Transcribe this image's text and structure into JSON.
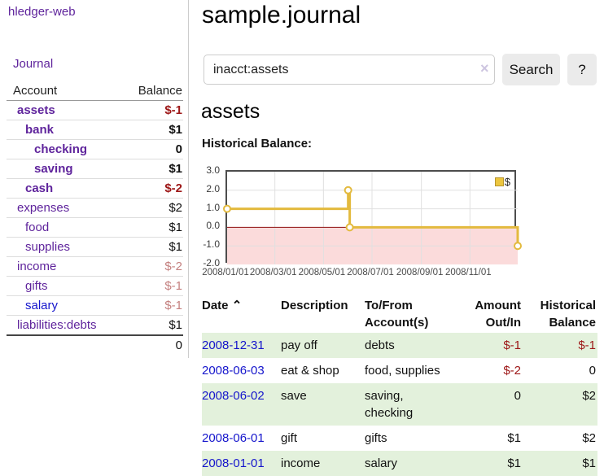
{
  "app": {
    "brand": "hledger-web",
    "nav_journal": "Journal"
  },
  "sidebar": {
    "header": {
      "account": "Account",
      "balance": "Balance"
    },
    "accounts": [
      {
        "name": "assets",
        "balance": "$-1",
        "level": 1,
        "bold": true,
        "balance_style": "neg-strong",
        "link_style": ""
      },
      {
        "name": "bank",
        "balance": "$1",
        "level": 2,
        "bold": true,
        "balance_style": "pos-strong",
        "link_style": ""
      },
      {
        "name": "checking",
        "balance": "0",
        "level": 3,
        "bold": true,
        "balance_style": "pos-strong",
        "link_style": ""
      },
      {
        "name": "saving",
        "balance": "$1",
        "level": 3,
        "bold": true,
        "balance_style": "pos-strong",
        "link_style": ""
      },
      {
        "name": "cash",
        "balance": "$-2",
        "level": 2,
        "bold": true,
        "balance_style": "neg-strong",
        "link_style": ""
      },
      {
        "name": "expenses",
        "balance": "$2",
        "level": 1,
        "bold": false,
        "balance_style": "pos",
        "link_style": ""
      },
      {
        "name": "food",
        "balance": "$1",
        "level": 2,
        "bold": false,
        "balance_style": "pos",
        "link_style": ""
      },
      {
        "name": "supplies",
        "balance": "$1",
        "level": 2,
        "bold": false,
        "balance_style": "pos",
        "link_style": ""
      },
      {
        "name": "income",
        "balance": "$-2",
        "level": 1,
        "bold": false,
        "balance_style": "neg-muted",
        "link_style": ""
      },
      {
        "name": "gifts",
        "balance": "$-1",
        "level": 2,
        "bold": false,
        "balance_style": "neg-muted",
        "link_style": ""
      },
      {
        "name": "salary",
        "balance": "$-1",
        "level": 2,
        "bold": false,
        "balance_style": "neg-muted",
        "link_style": "blue"
      },
      {
        "name": "liabilities:debts",
        "balance": "$1",
        "level": 1,
        "bold": false,
        "balance_style": "pos",
        "link_style": ""
      }
    ],
    "total": "0"
  },
  "header": {
    "title": "sample.journal"
  },
  "search": {
    "query": "inacct:assets",
    "clear_icon": "×",
    "search_label": "Search",
    "help_label": "?"
  },
  "account_page": {
    "title": "assets",
    "chart_label": "Historical Balance:"
  },
  "chart_data": {
    "type": "line",
    "step": true,
    "title": "Historical Balance",
    "legend": "$",
    "legend_position": "top-right",
    "series": [
      {
        "name": "$",
        "points": [
          {
            "date": "2008-01-01",
            "day": 0,
            "value": 1.0
          },
          {
            "date": "2008-06-01",
            "day": 152,
            "value": 2.0
          },
          {
            "date": "2008-06-03",
            "day": 154,
            "value": 0.0
          },
          {
            "date": "2008-12-31",
            "day": 365,
            "value": -1.0
          }
        ]
      }
    ],
    "ylim": [
      -2.0,
      3.0
    ],
    "yticks": [
      3.0,
      2.0,
      1.0,
      0.0,
      -1.0,
      -2.0
    ],
    "ytick_labels": [
      "3.0",
      "2.0",
      "1.0",
      "0.0",
      "-1.0",
      "-2.0"
    ],
    "xtick_days": [
      0,
      60,
      121,
      182,
      244,
      305
    ],
    "xtick_labels": [
      "2008/01/01",
      "2008/03/01",
      "2008/05/01",
      "2008/07/01",
      "2008/09/01",
      "2008/11/01"
    ],
    "x_range_days": 365,
    "grid": true,
    "line_color": "#e3ba3e",
    "marker_fill": "#ffffff",
    "negative_region_color": "#fbdbdb",
    "zero_line_color": "#8f0f0f",
    "gridline_color": "#e0e0e0"
  },
  "register": {
    "columns": {
      "date": "Date",
      "sort_icon": "⌃",
      "description": "Description",
      "account_l1": "To/From",
      "account_l2": "Account(s)",
      "amount_l1": "Amount",
      "amount_l2": "Out/In",
      "balance_l1": "Historical",
      "balance_l2": "Balance"
    },
    "rows": [
      {
        "date": "2008-12-31",
        "description": "pay off",
        "accounts": "debts",
        "amount": "$-1",
        "amount_neg": true,
        "balance": "$-1",
        "balance_neg": true,
        "shaded": true
      },
      {
        "date": "2008-06-03",
        "description": "eat & shop",
        "accounts": "food, supplies",
        "amount": "$-2",
        "amount_neg": true,
        "balance": "0",
        "balance_neg": false,
        "shaded": false
      },
      {
        "date": "2008-06-02",
        "description": "save",
        "accounts": "saving, checking",
        "amount": "0",
        "amount_neg": false,
        "balance": "$2",
        "balance_neg": false,
        "shaded": true
      },
      {
        "date": "2008-06-01",
        "description": "gift",
        "accounts": "gifts",
        "amount": "$1",
        "amount_neg": false,
        "balance": "$2",
        "balance_neg": false,
        "shaded": false
      },
      {
        "date": "2008-01-01",
        "description": "income",
        "accounts": "salary",
        "amount": "$1",
        "amount_neg": false,
        "balance": "$1",
        "balance_neg": false,
        "shaded": true
      }
    ]
  },
  "colors": {
    "link_purple": "#5f249c",
    "link_blue": "#1515cc",
    "negative_red": "#9d1717",
    "muted_negative": "#c4807f",
    "row_green": "#e3f1dc",
    "chart_gold": "#e3ba3e"
  }
}
